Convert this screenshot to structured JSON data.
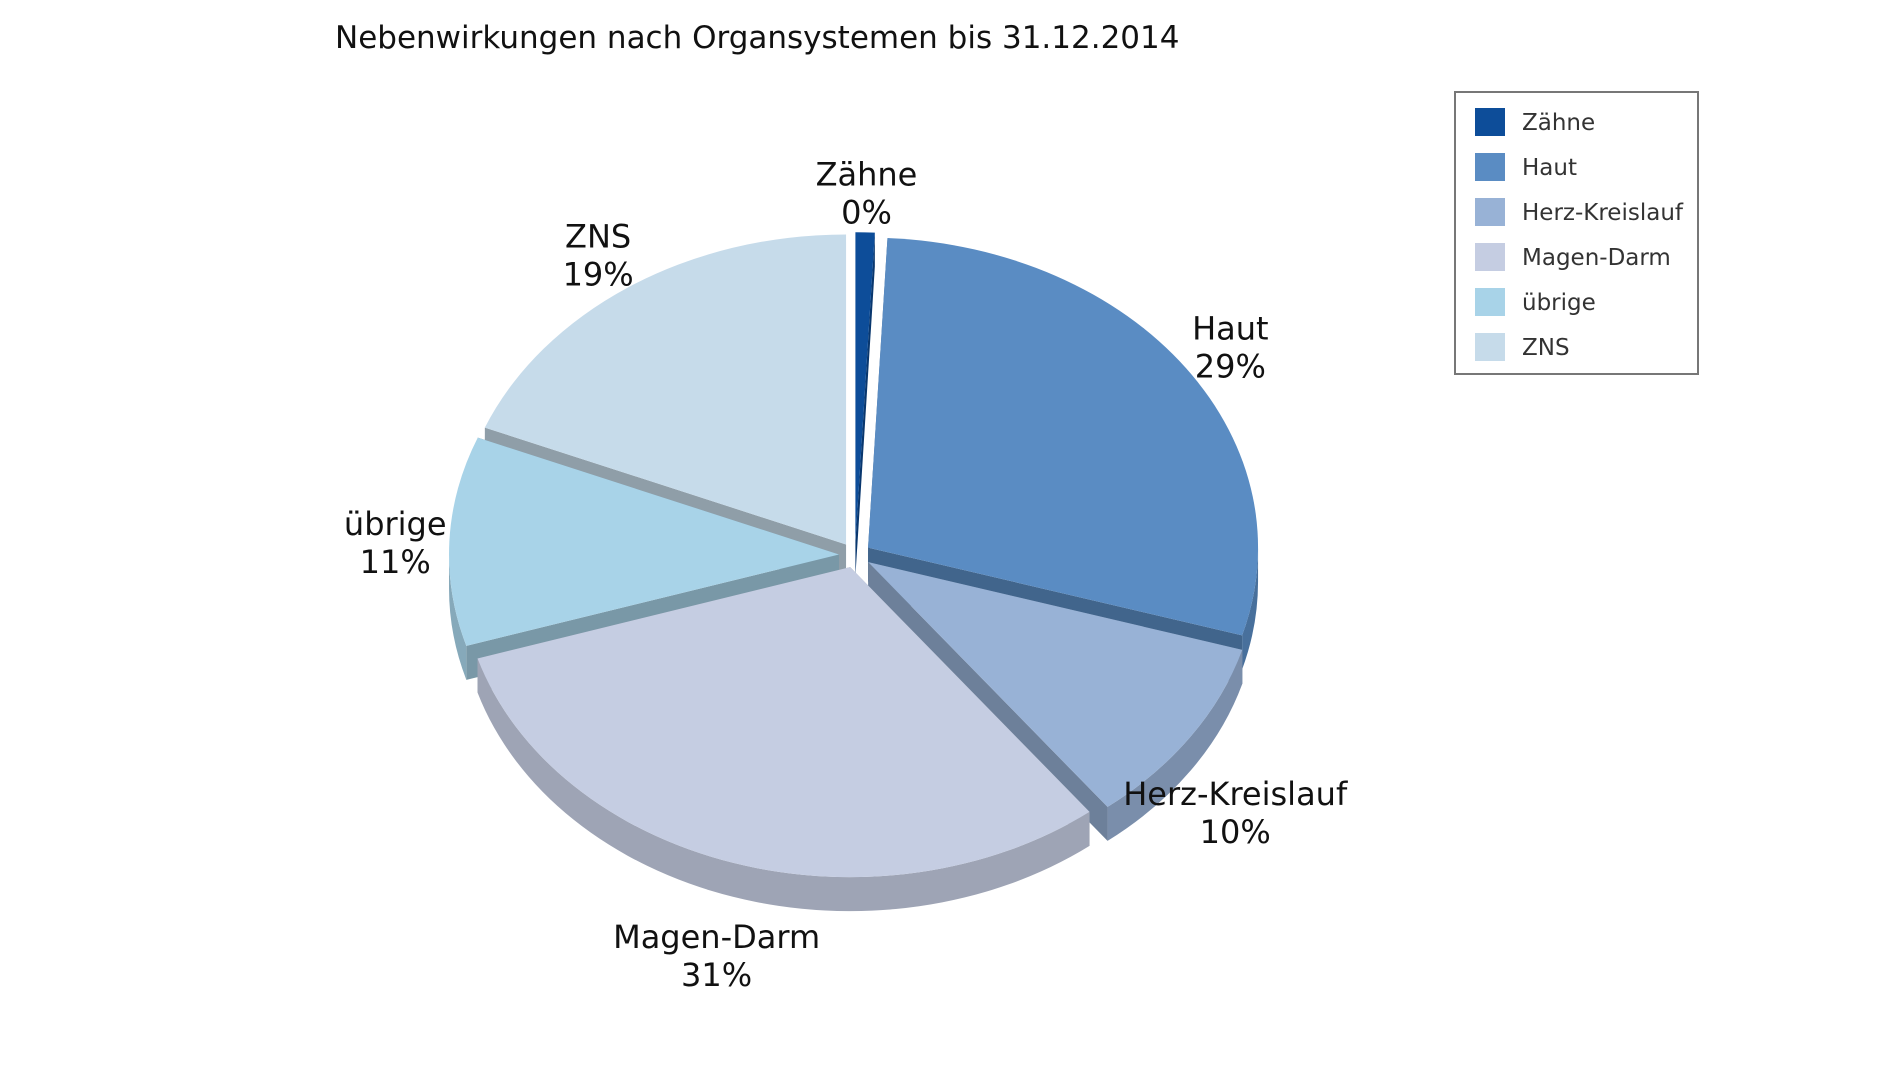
{
  "chart_data": {
    "type": "pie",
    "title": "Nebenwirkungen nach Organsystemen bis 31.12.2014",
    "legend_position": "top-right",
    "exploded": true,
    "three_d": true,
    "slices": [
      {
        "label": "Zähne",
        "value": 0,
        "value_label": "0%",
        "color": "#0d4d99"
      },
      {
        "label": "Haut",
        "value": 29,
        "value_label": "29%",
        "color": "#5a8cc3"
      },
      {
        "label": "Herz-Kreislauf",
        "value": 10,
        "value_label": "10%",
        "color": "#98b2d6"
      },
      {
        "label": "Magen-Darm",
        "value": 31,
        "value_label": "31%",
        "color": "#c5cde2"
      },
      {
        "label": "übrige",
        "value": 11,
        "value_label": "11%",
        "color": "#a8d3e8"
      },
      {
        "label": "ZNS",
        "value": 19,
        "value_label": "19%",
        "color": "#c6dbea"
      }
    ]
  }
}
